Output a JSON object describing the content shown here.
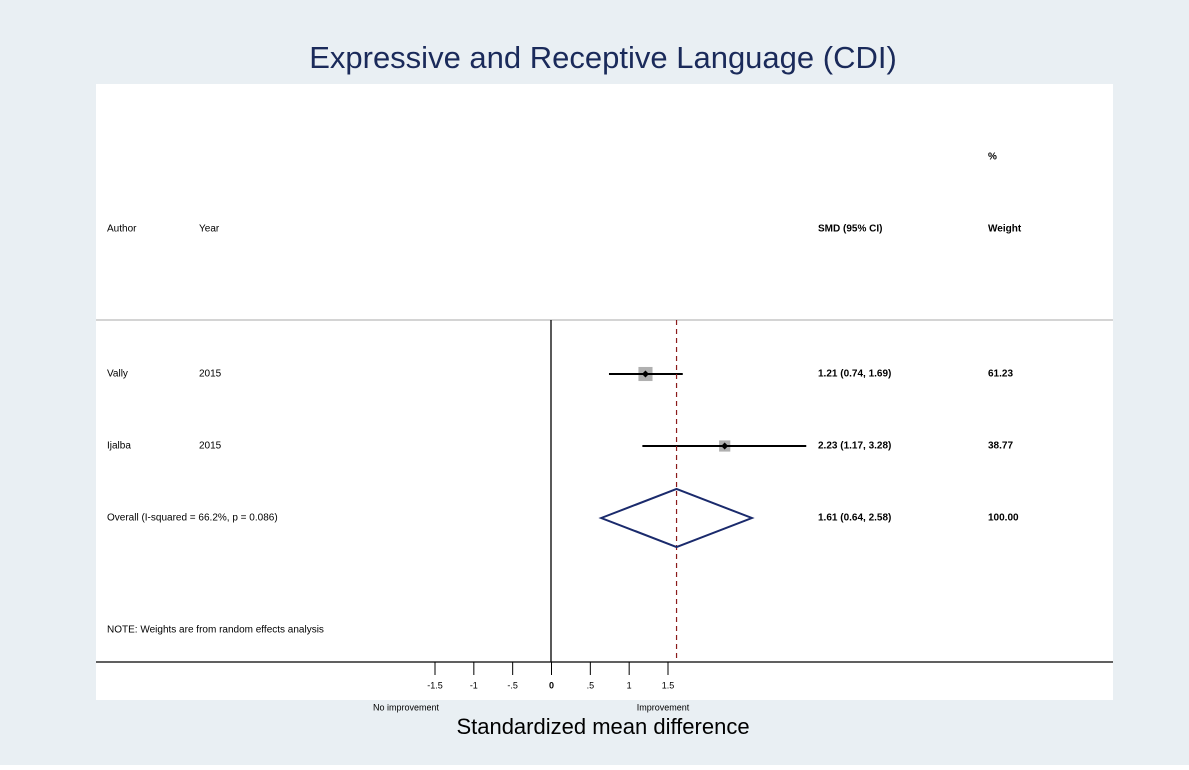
{
  "chart_data": {
    "type": "forest",
    "title": "Expressive and Receptive Language (CDI)",
    "headers": {
      "author": "Author",
      "year": "Year",
      "effect": "SMD (95% CI)",
      "weight_top": "%",
      "weight": "Weight"
    },
    "studies": [
      {
        "author": "Vally",
        "year": "2015",
        "estimate": 1.21,
        "lower": 0.74,
        "upper": 1.69,
        "ci_label": "1.21 (0.74, 1.69)",
        "weight": 61.23
      },
      {
        "author": "Ijalba",
        "year": "2015",
        "estimate": 2.23,
        "lower": 1.17,
        "upper": 3.28,
        "ci_label": "2.23 (1.17, 3.28)",
        "weight": 38.77
      }
    ],
    "overall": {
      "label": "Overall  (I-squared = 66.2%, p = 0.086)",
      "estimate": 1.61,
      "lower": 0.64,
      "upper": 2.58,
      "ci_label": "1.61 (0.64, 2.58)",
      "weight": {
        "value": 100,
        "label": "100.00"
      }
    },
    "note": "NOTE: Weights are from random effects analysis",
    "xticks": [
      -1.5,
      -1,
      {
        "value": -0.5,
        "label": "-.5"
      },
      0,
      {
        "value": 0.5,
        "label": ".5"
      },
      1,
      1.5
    ],
    "x_left_label": "No improvement",
    "x_right_label": "Improvement",
    "xlabel": "Standardized mean difference",
    "box_color": "#b0b0b0",
    "diamond_color": "#1a2a6c",
    "reference_color": "#8b1a1a"
  }
}
